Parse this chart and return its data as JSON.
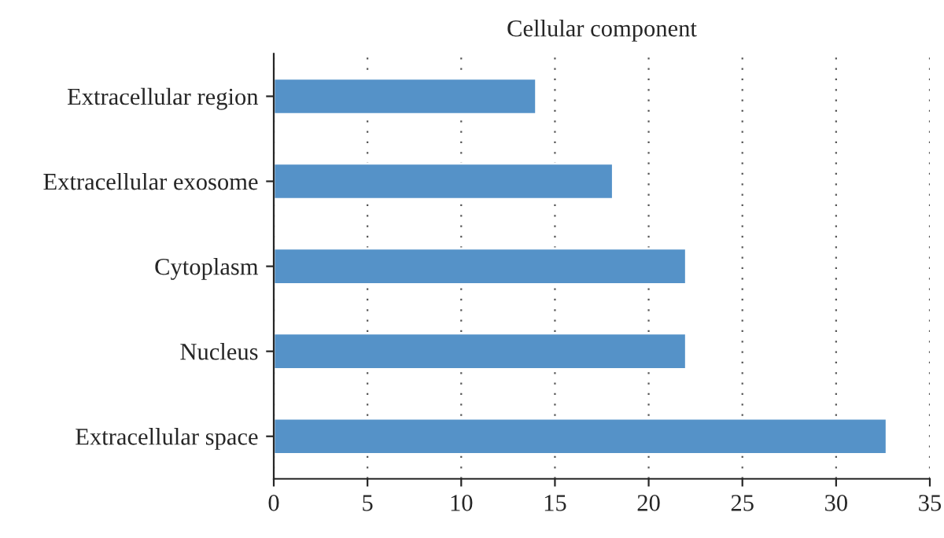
{
  "chart_data": {
    "type": "bar",
    "orientation": "horizontal",
    "title": "Cellular component",
    "categories": [
      "Extracellular region",
      "Extracellular exosome",
      "Cytoplasm",
      "Nucleus",
      "Extracellular space"
    ],
    "values": [
      14,
      18.1,
      22,
      22,
      32.7
    ],
    "color": "#5592c8",
    "xlim": [
      0,
      35
    ],
    "xticks": [
      0,
      5,
      10,
      15,
      20,
      25,
      30,
      35
    ],
    "grid": "x"
  }
}
